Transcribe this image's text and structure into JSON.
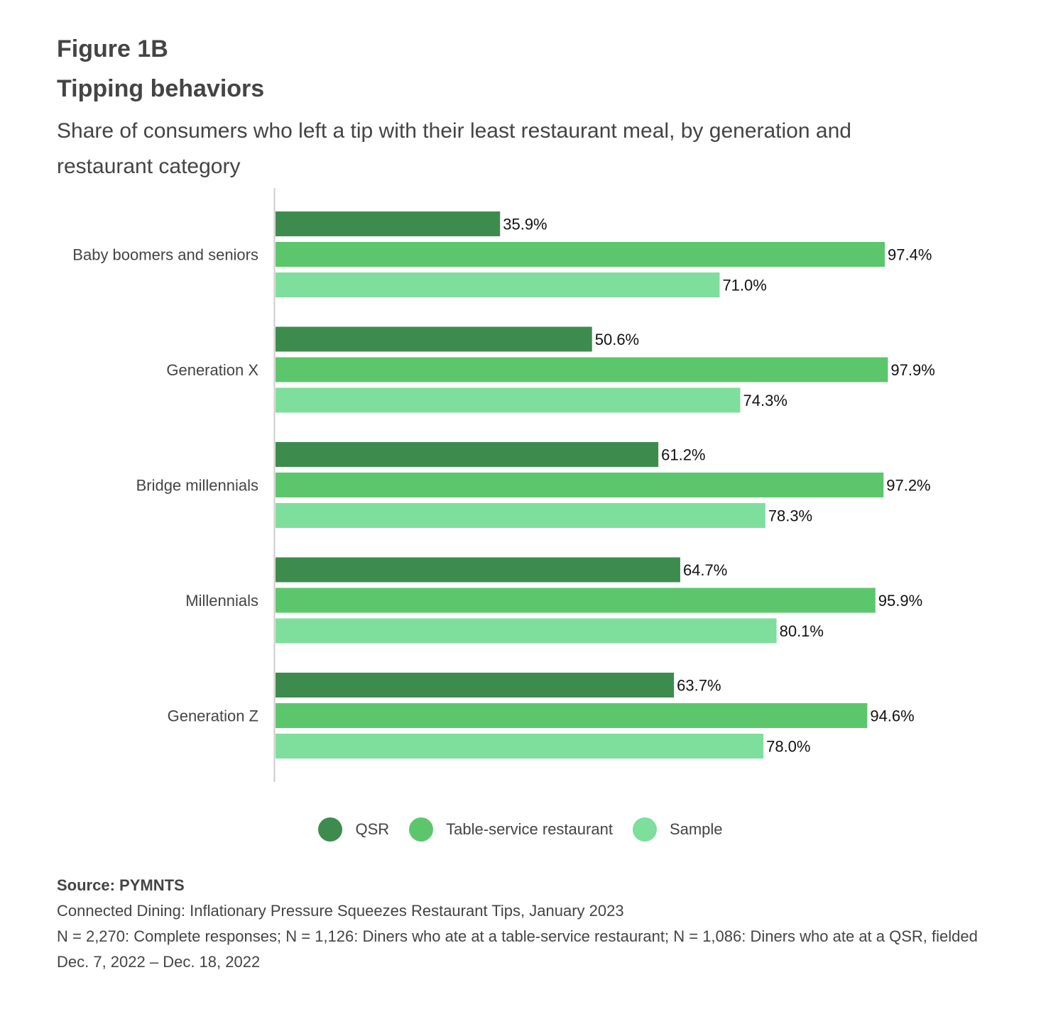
{
  "figure_label": "Figure 1B",
  "chart_data": {
    "type": "bar",
    "orientation": "horizontal",
    "title": "Tipping behaviors",
    "subtitle": "Share of consumers who left a tip with their least restaurant meal, by generation and restaurant category",
    "categories": [
      "Baby boomers and seniors",
      "Generation X",
      "Bridge millennials",
      "Millennials",
      "Generation Z"
    ],
    "series": [
      {
        "name": "QSR",
        "color": "#3d8c4e",
        "values": [
          35.9,
          50.6,
          61.2,
          64.7,
          63.7
        ]
      },
      {
        "name": "Table-service restaurant",
        "color": "#5cc66c",
        "values": [
          97.4,
          97.9,
          97.2,
          95.9,
          94.6
        ]
      },
      {
        "name": "Sample",
        "color": "#7ede9c",
        "values": [
          71.0,
          74.3,
          78.3,
          80.1,
          78.0
        ]
      }
    ],
    "value_suffix": "%",
    "xlim": [
      0,
      100
    ],
    "grid": false,
    "legend_position": "bottom"
  },
  "source": {
    "label": "Source: PYMNTS",
    "lines": [
      "Connected Dining: Inflationary Pressure Squeezes Restaurant Tips, January 2023",
      "N = 2,270: Complete responses; N = 1,126: Diners who ate at a table-service restaurant; N = 1,086: Diners who ate at a QSR, fielded Dec. 7, 2022 – Dec. 18, 2022"
    ]
  }
}
